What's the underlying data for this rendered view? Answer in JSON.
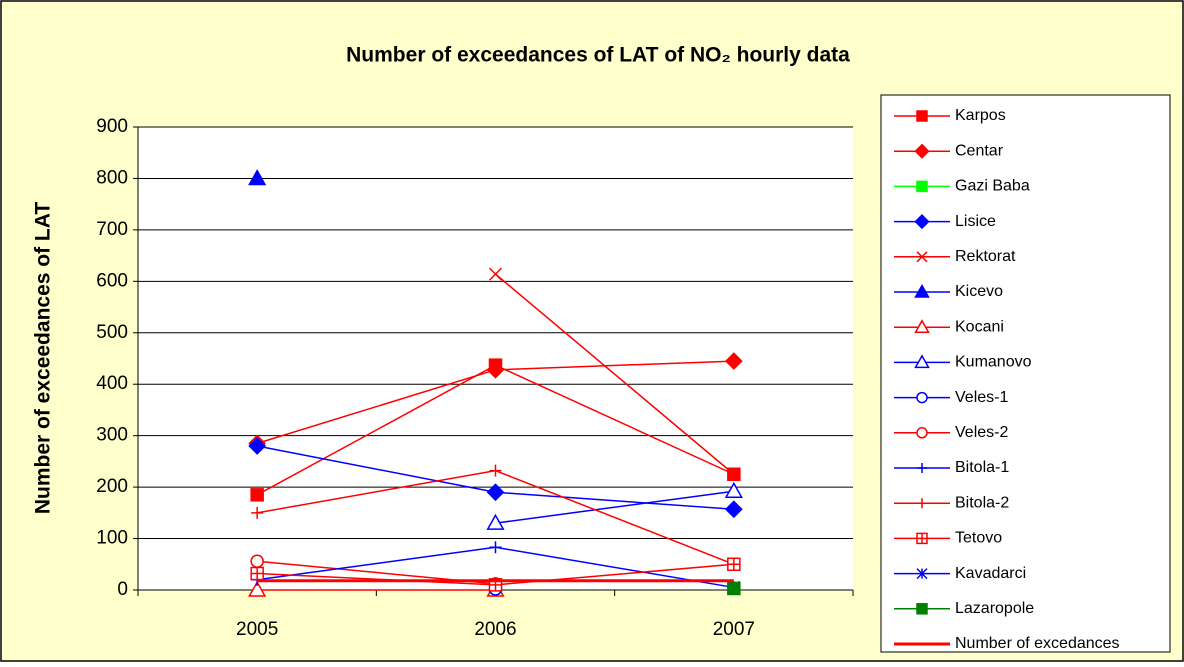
{
  "chart_data": {
    "type": "line",
    "title": "Number of exceedances of LAT of NO₂ hourly data",
    "y_label": "Number of exceedances of LAT",
    "categories": [
      "2005",
      "2006",
      "2007"
    ],
    "ylim": [
      0,
      900
    ],
    "yticks": [
      0,
      100,
      200,
      300,
      400,
      500,
      600,
      700,
      800,
      900
    ],
    "grid": true,
    "series": [
      {
        "name": "Karpos",
        "color": "#ff0000",
        "marker": "square",
        "filled": true,
        "values": [
          185,
          437,
          225
        ]
      },
      {
        "name": "Centar",
        "color": "#ff0000",
        "marker": "diamond",
        "filled": true,
        "values": [
          285,
          428,
          445
        ]
      },
      {
        "name": "Gazi Baba",
        "color": "#00ff00",
        "marker": "square",
        "filled": true,
        "values": [
          null,
          null,
          null
        ]
      },
      {
        "name": "Lisice",
        "color": "#0000ff",
        "marker": "diamond",
        "filled": true,
        "values": [
          280,
          190,
          157
        ]
      },
      {
        "name": "Rektorat",
        "color": "#ff0000",
        "marker": "x",
        "filled": false,
        "values": [
          null,
          614,
          225
        ]
      },
      {
        "name": "Kicevo",
        "color": "#0000ff",
        "marker": "triangle",
        "filled": true,
        "values": [
          800,
          null,
          null
        ]
      },
      {
        "name": "Kocani",
        "color": "#ff0000",
        "marker": "triangle",
        "filled": false,
        "values": [
          0,
          0,
          null
        ]
      },
      {
        "name": "Kumanovo",
        "color": "#0000ff",
        "marker": "triangle",
        "filled": false,
        "values": [
          null,
          130,
          192
        ]
      },
      {
        "name": "Veles-1",
        "color": "#0000ff",
        "marker": "circle",
        "filled": false,
        "values": [
          null,
          2,
          null
        ]
      },
      {
        "name": "Veles-2",
        "color": "#ff0000",
        "marker": "circle",
        "filled": false,
        "values": [
          56,
          12,
          null
        ]
      },
      {
        "name": "Bitola-1",
        "color": "#0000ff",
        "marker": "plus",
        "filled": false,
        "values": [
          20,
          83,
          5
        ]
      },
      {
        "name": "Bitola-2",
        "color": "#ff0000",
        "marker": "plus",
        "filled": false,
        "values": [
          150,
          232,
          50
        ]
      },
      {
        "name": "Tetovo",
        "color": "#ff0000",
        "marker": "squarecross",
        "filled": false,
        "values": [
          32,
          10,
          50
        ]
      },
      {
        "name": "Kavadarci",
        "color": "#0000ff",
        "marker": "star",
        "filled": false,
        "values": [
          null,
          null,
          5
        ]
      },
      {
        "name": "Lazaropole",
        "color": "#008000",
        "marker": "square",
        "filled": true,
        "values": [
          null,
          null,
          3
        ]
      },
      {
        "name": "Number of excedances",
        "color": "#ff0000",
        "marker": "none",
        "filled": false,
        "width": 3,
        "values": [
          18,
          18,
          18
        ]
      }
    ]
  }
}
